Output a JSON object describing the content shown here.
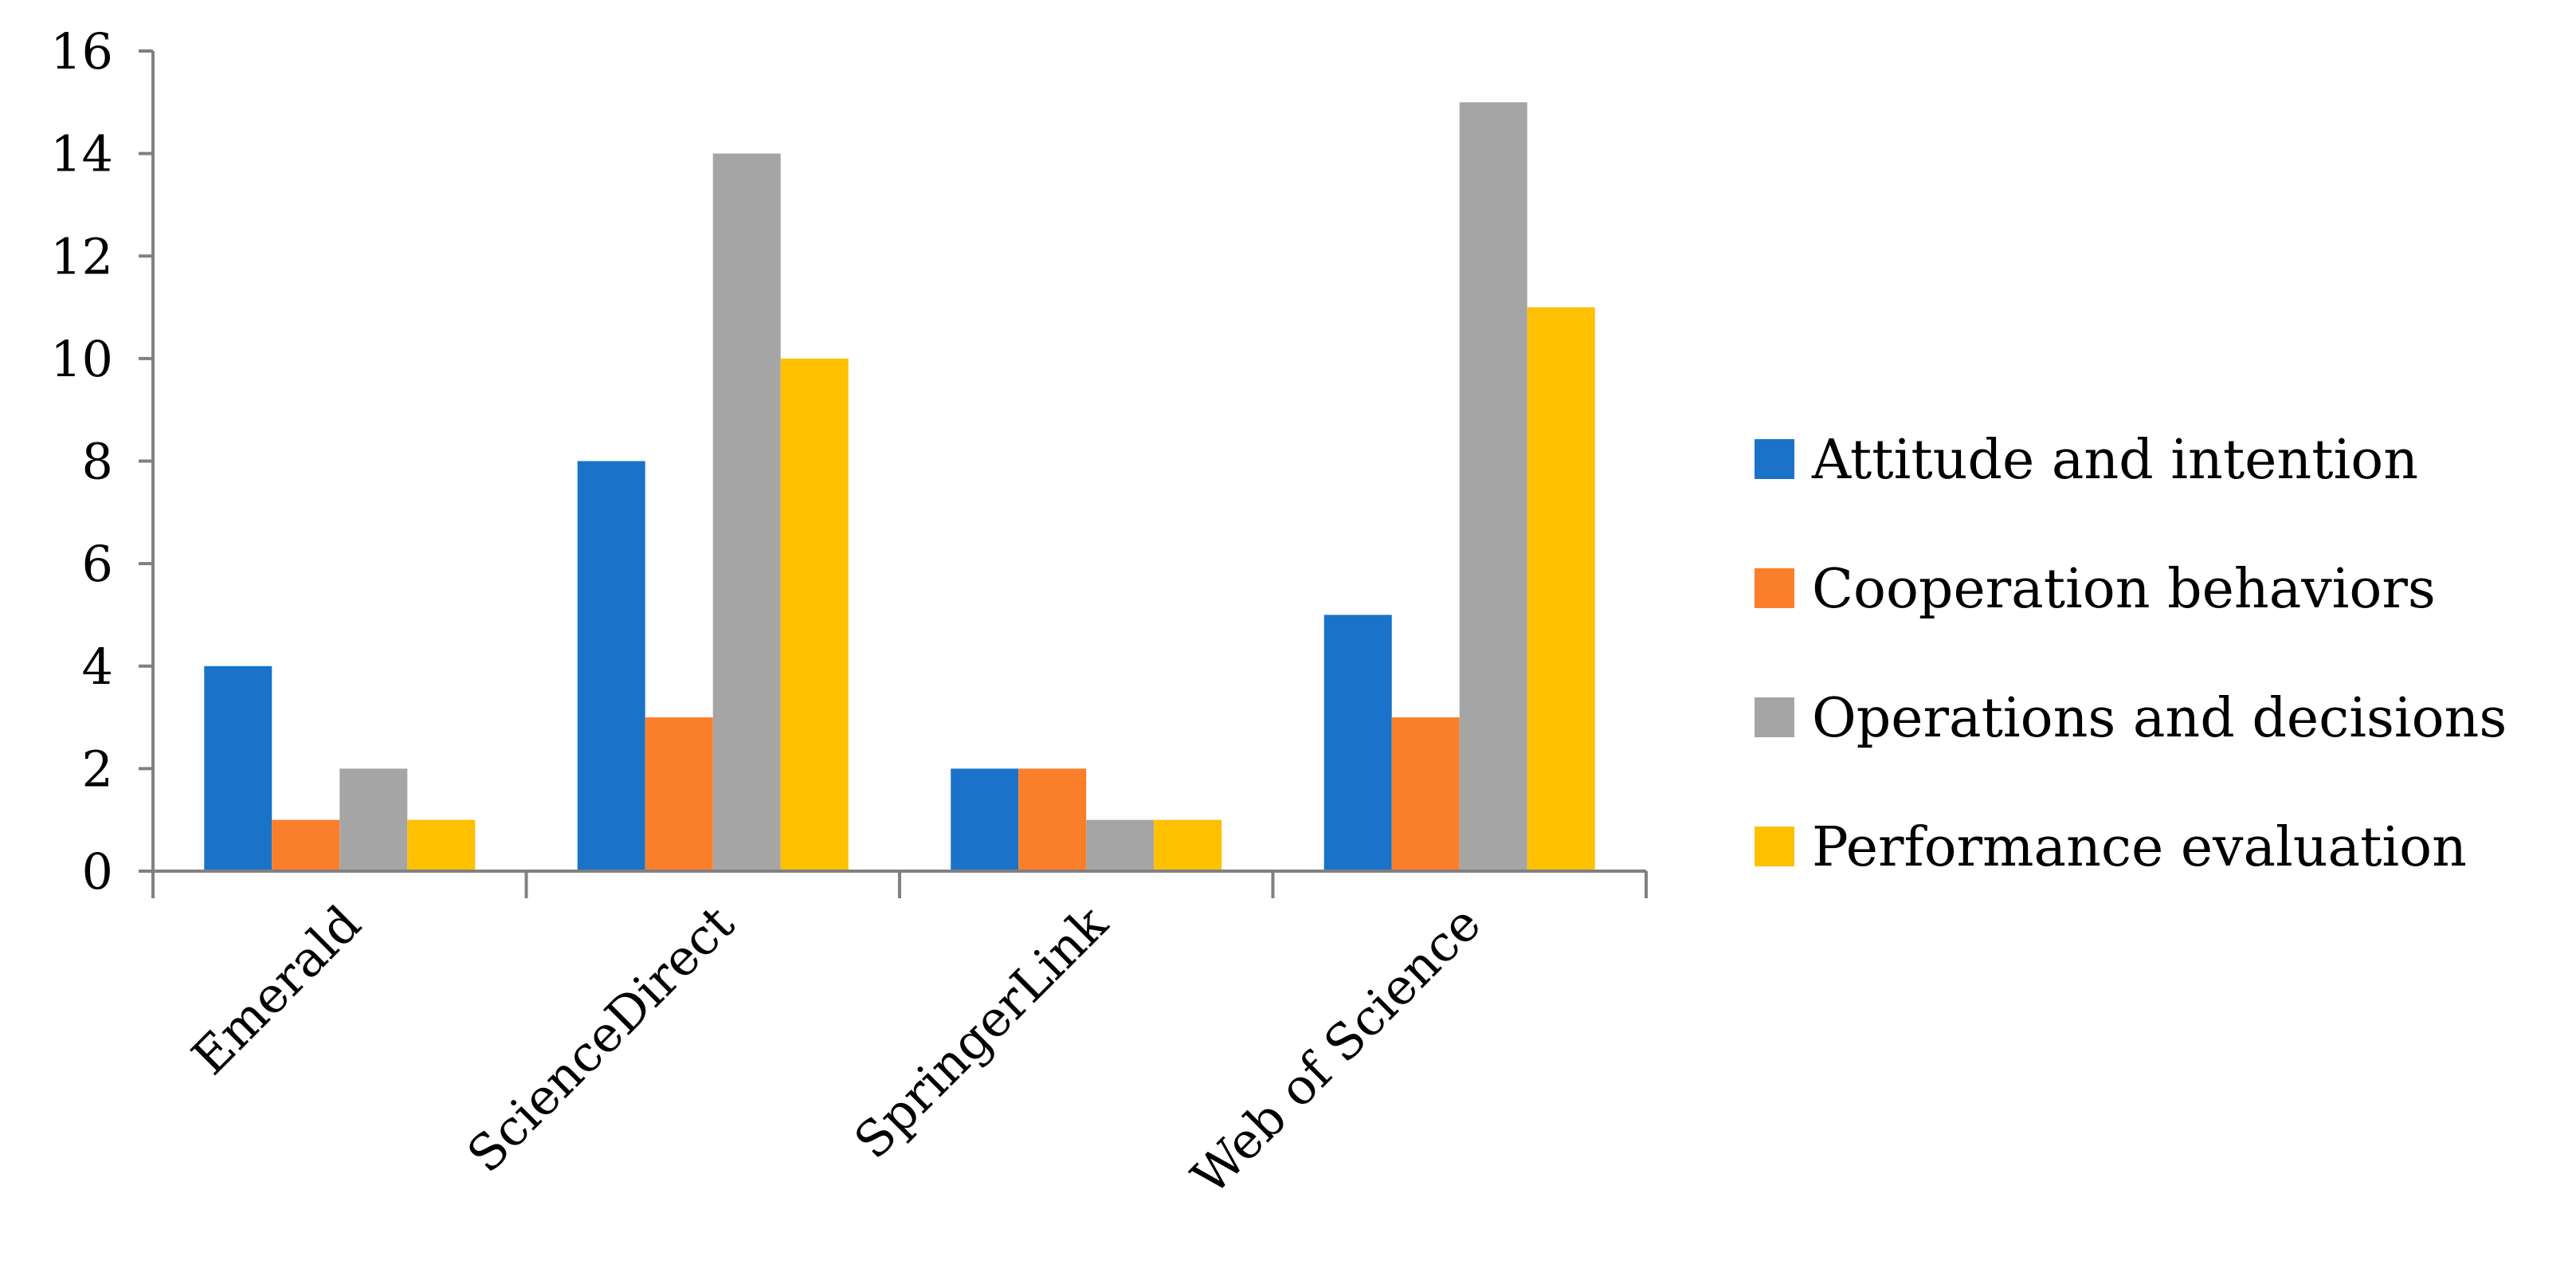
{
  "chart_data": {
    "type": "bar",
    "title": "",
    "xlabel": "",
    "ylabel": "",
    "ylim": [
      0,
      16
    ],
    "ytick_step": 2,
    "grid": false,
    "legend_position": "right",
    "categories": [
      "Emerald",
      "ScienceDirect",
      "SpringerLink",
      "Web of Science"
    ],
    "series": [
      {
        "name": "Attitude and intention",
        "color": "#1a73c8",
        "values": [
          4,
          8,
          2,
          5
        ]
      },
      {
        "name": "Cooperation behaviors",
        "color": "#fb7f2b",
        "values": [
          1,
          3,
          2,
          3
        ]
      },
      {
        "name": "Operations and decisions",
        "color": "#a5a5a5",
        "values": [
          2,
          14,
          1,
          15
        ]
      },
      {
        "name": "Performance evaluation",
        "color": "#ffc000",
        "values": [
          1,
          10,
          1,
          11
        ]
      }
    ]
  }
}
